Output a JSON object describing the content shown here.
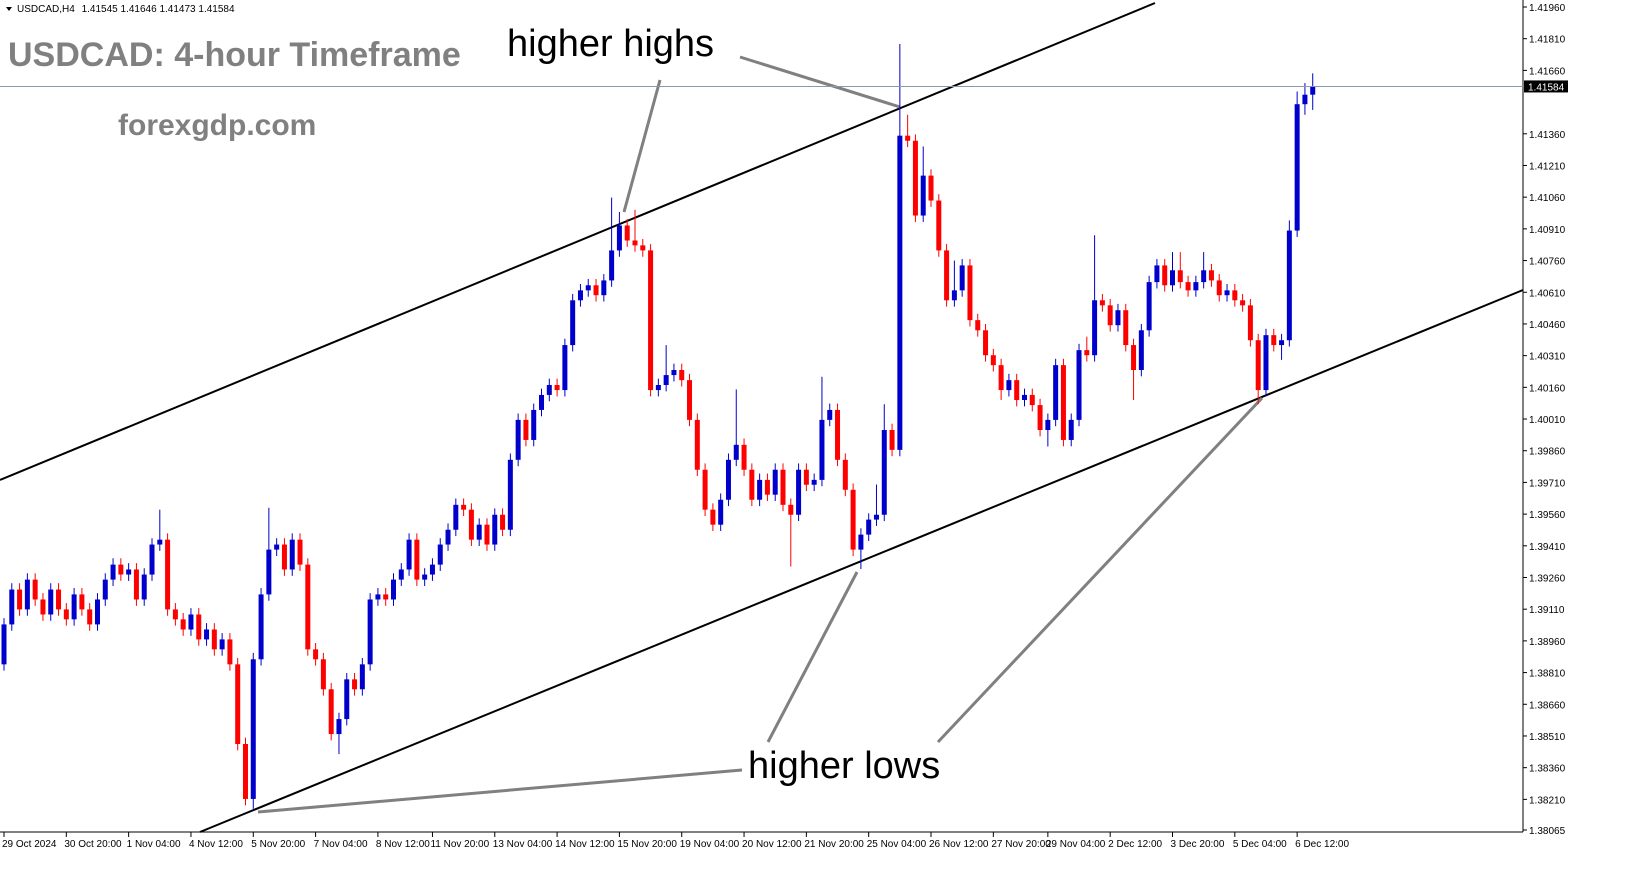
{
  "chart_data": {
    "type": "candlestick",
    "symbol": "USDCAD,H4",
    "title": "USDCAD: 4-hour Timeframe",
    "subtitle": "forexgdp.com",
    "annotations": [
      "higher highs",
      "higher lows"
    ],
    "up_color": "#0000cc",
    "down_color": "#ff0000",
    "categories": [
      "29 Oct 2024",
      null,
      null,
      null,
      null,
      null,
      null,
      null,
      "30 Oct 20:00",
      null,
      null,
      null,
      null,
      null,
      null,
      null,
      "1 Nov 04:00",
      null,
      null,
      null,
      null,
      null,
      null,
      null,
      "4 Nov 12:00",
      null,
      null,
      null,
      null,
      null,
      null,
      null,
      "5 Nov 20:00",
      null,
      null,
      null,
      null,
      null,
      null,
      null,
      "7 Nov 04:00",
      null,
      null,
      null,
      null,
      null,
      null,
      null,
      "8 Nov 12:00",
      null,
      null,
      null,
      null,
      null,
      null,
      "11 Nov 20:00",
      null,
      null,
      null,
      null,
      null,
      null,
      null,
      "13 Nov 04:00",
      null,
      null,
      null,
      null,
      null,
      null,
      null,
      "14 Nov 12:00",
      null,
      null,
      null,
      null,
      null,
      null,
      null,
      "15 Nov 20:00",
      null,
      null,
      null,
      null,
      null,
      null,
      null,
      "19 Nov 04:00",
      null,
      null,
      null,
      null,
      null,
      null,
      null,
      "20 Nov 12:00",
      null,
      null,
      null,
      null,
      null,
      null,
      null,
      "21 Nov 20:00",
      null,
      null,
      null,
      null,
      null,
      null,
      null,
      "25 Nov 04:00",
      null,
      null,
      null,
      null,
      null,
      null,
      null,
      "26 Nov 12:00",
      null,
      null,
      null,
      null,
      null,
      null,
      null,
      "27 Nov 20:00",
      null,
      null,
      null,
      null,
      null,
      null,
      "29 Nov 04:00",
      null,
      null,
      null,
      null,
      null,
      null,
      null,
      "2 Dec 12:00",
      null,
      null,
      null,
      null,
      null,
      null,
      null,
      "3 Dec 20:00",
      null,
      null,
      null,
      null,
      null,
      null,
      null,
      "5 Dec 04:00",
      null,
      null,
      null,
      null,
      null,
      null,
      null,
      "6 Dec 12:00",
      null,
      null
    ],
    "open": [
      1.38849,
      1.39038,
      1.39203,
      1.39109,
      1.3925,
      1.39156,
      1.39085,
      1.39203,
      1.39109,
      1.39062,
      1.3918,
      1.39109,
      1.39038,
      1.39156,
      1.3925,
      1.39321,
      1.39274,
      1.39298,
      1.39156,
      1.39274,
      1.39416,
      1.39439,
      1.39109,
      1.39062,
      1.39014,
      1.39085,
      1.38967,
      1.39014,
      1.3892,
      1.38967,
      1.38849,
      1.38472,
      1.38212,
      1.38873,
      1.3918,
      1.39392,
      1.39416,
      1.39298,
      1.39439,
      1.39321,
      1.3892,
      1.38873,
      1.38731,
      1.38519,
      1.3859,
      1.38778,
      1.38731,
      1.38849,
      1.39156,
      1.3918,
      1.39156,
      1.3925,
      1.39298,
      1.39439,
      1.3925,
      1.39274,
      1.39321,
      1.39416,
      1.39486,
      1.39604,
      1.39581,
      1.39439,
      1.3951,
      1.39416,
      1.39557,
      1.39486,
      1.39817,
      1.40006,
      1.39911,
      1.40053,
      1.40124,
      1.40171,
      1.40147,
      1.4036,
      1.40572,
      1.40619,
      1.40643,
      1.40596,
      1.40666,
      1.40808,
      1.40926,
      1.40855,
      1.40832,
      1.40808,
      1.40147,
      1.40171,
      1.40218,
      1.40242,
      1.40194,
      1.40006,
      1.3977,
      1.39581,
      1.3951,
      1.39628,
      1.39817,
      1.39888,
      1.3977,
      1.39628,
      1.39722,
      1.39652,
      1.3977,
      1.39604,
      1.39557,
      1.3977,
      1.39699,
      1.39722,
      1.40006,
      1.40053,
      1.39817,
      1.39675,
      1.39392,
      1.39463,
      1.39534,
      1.39557,
      1.39958,
      1.39864,
      1.41351,
      1.41327,
      1.40973,
      1.41162,
      1.41044,
      1.40808,
      1.40572,
      1.40619,
      1.40737,
      1.40478,
      1.4043,
      1.40312,
      1.40265,
      1.40147,
      1.40194,
      1.401,
      1.40124,
      1.40076,
      1.39958,
      1.40006,
      1.40265,
      1.39911,
      1.40006,
      1.40336,
      1.40312,
      1.40572,
      1.40548,
      1.40454,
      1.40525,
      1.4036,
      1.40242,
      1.4043,
      1.40658,
      1.40737,
      1.40643,
      1.40714,
      1.40658,
      1.40619,
      1.40658,
      1.40714,
      1.40666,
      1.40596,
      1.40619,
      1.40572,
      1.40548,
      1.40383,
      1.40147,
      1.40407,
      1.4036,
      1.40383,
      1.40902,
      1.415,
      1.41545
    ],
    "high": [
      1.39068,
      1.39233,
      1.39233,
      1.3928,
      1.3928,
      1.39186,
      1.39233,
      1.39233,
      1.39139,
      1.3921,
      1.3921,
      1.39139,
      1.39186,
      1.3928,
      1.39351,
      1.39351,
      1.39328,
      1.39328,
      1.39304,
      1.39446,
      1.39581,
      1.39469,
      1.39139,
      1.39092,
      1.39115,
      1.39115,
      1.39044,
      1.39044,
      1.38997,
      1.38997,
      1.38879,
      1.38502,
      1.38903,
      1.3921,
      1.3959,
      1.39446,
      1.39446,
      1.39469,
      1.39469,
      1.39351,
      1.3895,
      1.38903,
      1.38761,
      1.3862,
      1.38808,
      1.38808,
      1.38879,
      1.39186,
      1.3921,
      1.3921,
      1.3928,
      1.39328,
      1.39469,
      1.39469,
      1.39304,
      1.39351,
      1.39446,
      1.39516,
      1.39634,
      1.39634,
      1.39611,
      1.3954,
      1.3954,
      1.39587,
      1.39587,
      1.39847,
      1.40036,
      1.40036,
      1.40083,
      1.40154,
      1.40201,
      1.40201,
      1.4039,
      1.40602,
      1.40649,
      1.40673,
      1.40673,
      1.40696,
      1.41058,
      1.4099,
      1.40956,
      1.41,
      1.40862,
      1.40838,
      1.40201,
      1.4036,
      1.40272,
      1.40272,
      1.40224,
      1.40036,
      1.398,
      1.39611,
      1.39658,
      1.39847,
      1.4015,
      1.39918,
      1.398,
      1.39752,
      1.39752,
      1.398,
      1.398,
      1.39634,
      1.398,
      1.398,
      1.39752,
      1.4021,
      1.40083,
      1.40083,
      1.39847,
      1.39705,
      1.39493,
      1.39564,
      1.397,
      1.4008,
      1.39988,
      1.41785,
      1.4145,
      1.41357,
      1.413,
      1.41192,
      1.41074,
      1.40838,
      1.4076,
      1.40767,
      1.40767,
      1.40508,
      1.4046,
      1.40342,
      1.40295,
      1.40224,
      1.40224,
      1.40154,
      1.40154,
      1.40106,
      1.40036,
      1.40295,
      1.40295,
      1.40036,
      1.40366,
      1.404,
      1.4088,
      1.40602,
      1.40578,
      1.40555,
      1.40555,
      1.4039,
      1.4046,
      1.40688,
      1.40767,
      1.40767,
      1.408,
      1.408,
      1.40688,
      1.40688,
      1.408,
      1.40744,
      1.40696,
      1.40649,
      1.40649,
      1.40602,
      1.40578,
      1.40413,
      1.40437,
      1.40437,
      1.40413,
      1.4095,
      1.4156,
      1.416,
      1.41646
    ],
    "low": [
      1.38819,
      1.39008,
      1.39079,
      1.39079,
      1.39126,
      1.39055,
      1.39055,
      1.39079,
      1.39032,
      1.39032,
      1.39079,
      1.39008,
      1.39008,
      1.39126,
      1.3922,
      1.39244,
      1.39244,
      1.39126,
      1.39126,
      1.39244,
      1.39386,
      1.39079,
      1.39032,
      1.38984,
      1.38984,
      1.38937,
      1.38937,
      1.3889,
      1.3889,
      1.38819,
      1.38442,
      1.38182,
      1.38165,
      1.38843,
      1.3915,
      1.39362,
      1.39268,
      1.39268,
      1.39291,
      1.3889,
      1.38843,
      1.38701,
      1.38489,
      1.38424,
      1.3856,
      1.38701,
      1.38701,
      1.38819,
      1.39126,
      1.39126,
      1.39126,
      1.3922,
      1.39268,
      1.3922,
      1.3922,
      1.39244,
      1.39291,
      1.39386,
      1.39456,
      1.39551,
      1.39409,
      1.39409,
      1.39386,
      1.39386,
      1.39456,
      1.39456,
      1.39787,
      1.39881,
      1.39881,
      1.40023,
      1.40094,
      1.40117,
      1.40117,
      1.4033,
      1.40542,
      1.40589,
      1.40566,
      1.40566,
      1.40636,
      1.40778,
      1.40825,
      1.40802,
      1.40778,
      1.40117,
      1.40117,
      1.40141,
      1.40188,
      1.40164,
      1.39976,
      1.3974,
      1.39551,
      1.3948,
      1.3948,
      1.39598,
      1.39787,
      1.3974,
      1.39598,
      1.39598,
      1.39622,
      1.39622,
      1.39574,
      1.39312,
      1.39527,
      1.39669,
      1.39669,
      1.39692,
      1.39976,
      1.39787,
      1.39645,
      1.39362,
      1.393,
      1.39433,
      1.39504,
      1.39527,
      1.39834,
      1.39834,
      1.41297,
      1.40943,
      1.40943,
      1.41014,
      1.40778,
      1.40542,
      1.40542,
      1.40589,
      1.40448,
      1.404,
      1.40282,
      1.40235,
      1.401,
      1.40117,
      1.4007,
      1.4007,
      1.40046,
      1.39928,
      1.3988,
      1.39976,
      1.39881,
      1.39881,
      1.39976,
      1.40282,
      1.40282,
      1.40518,
      1.40424,
      1.40424,
      1.4033,
      1.401,
      1.40212,
      1.404,
      1.40628,
      1.40613,
      1.40613,
      1.40628,
      1.40589,
      1.40589,
      1.40628,
      1.40636,
      1.40566,
      1.40566,
      1.40542,
      1.40518,
      1.40353,
      1.4008,
      1.40117,
      1.4033,
      1.4029,
      1.40353,
      1.40872,
      1.4145,
      1.41473
    ],
    "close": [
      1.39038,
      1.39203,
      1.39109,
      1.3925,
      1.39156,
      1.39085,
      1.39203,
      1.39109,
      1.39062,
      1.3918,
      1.39109,
      1.39038,
      1.39156,
      1.3925,
      1.39321,
      1.39274,
      1.39298,
      1.39156,
      1.39274,
      1.39416,
      1.39439,
      1.39109,
      1.39062,
      1.39014,
      1.39085,
      1.38967,
      1.39014,
      1.3892,
      1.38967,
      1.38849,
      1.38472,
      1.38212,
      1.38873,
      1.3918,
      1.39392,
      1.39416,
      1.39298,
      1.39439,
      1.39321,
      1.3892,
      1.38873,
      1.38731,
      1.38519,
      1.3859,
      1.38778,
      1.38731,
      1.38849,
      1.39156,
      1.3918,
      1.39156,
      1.3925,
      1.39298,
      1.39439,
      1.3925,
      1.39274,
      1.39321,
      1.39416,
      1.39486,
      1.39604,
      1.39581,
      1.39439,
      1.3951,
      1.39416,
      1.39557,
      1.39486,
      1.39817,
      1.40006,
      1.39911,
      1.40053,
      1.40124,
      1.40171,
      1.40147,
      1.4036,
      1.40572,
      1.40619,
      1.40643,
      1.40596,
      1.40666,
      1.40808,
      1.40926,
      1.40855,
      1.40832,
      1.40808,
      1.40147,
      1.40171,
      1.40218,
      1.40242,
      1.40194,
      1.40006,
      1.3977,
      1.39581,
      1.3951,
      1.39628,
      1.39817,
      1.39888,
      1.3977,
      1.39628,
      1.39722,
      1.39652,
      1.3977,
      1.39604,
      1.39557,
      1.3977,
      1.39699,
      1.39722,
      1.40006,
      1.40053,
      1.39817,
      1.39675,
      1.39392,
      1.39463,
      1.39534,
      1.39557,
      1.39958,
      1.39864,
      1.41351,
      1.41327,
      1.40973,
      1.41162,
      1.41044,
      1.40808,
      1.40572,
      1.40619,
      1.40737,
      1.40478,
      1.4043,
      1.40312,
      1.40265,
      1.40147,
      1.40194,
      1.401,
      1.40124,
      1.40076,
      1.39958,
      1.40006,
      1.40265,
      1.39911,
      1.40006,
      1.40336,
      1.40312,
      1.40572,
      1.40548,
      1.40454,
      1.40525,
      1.4036,
      1.40242,
      1.4043,
      1.40658,
      1.40737,
      1.40643,
      1.40714,
      1.40658,
      1.40619,
      1.40658,
      1.40714,
      1.40666,
      1.40596,
      1.40619,
      1.40572,
      1.40548,
      1.40383,
      1.40147,
      1.40407,
      1.4036,
      1.40383,
      1.40902,
      1.415,
      1.41545,
      1.41584
    ],
    "ylim": [
      1.38065,
      1.4196
    ],
    "yticks": [
      {
        "value": 1.4196,
        "label": "1.41960"
      },
      {
        "value": 1.4181,
        "label": "1.41810"
      },
      {
        "value": 1.4166,
        "label": "1.41660"
      },
      {
        "value": 1.4136,
        "label": "1.41360"
      },
      {
        "value": 1.4121,
        "label": "1.41210"
      },
      {
        "value": 1.4106,
        "label": "1.41060"
      },
      {
        "value": 1.4091,
        "label": "1.40910"
      },
      {
        "value": 1.4076,
        "label": "1.40760"
      },
      {
        "value": 1.4061,
        "label": "1.40610"
      },
      {
        "value": 1.4046,
        "label": "1.40460"
      },
      {
        "value": 1.4031,
        "label": "1.40310"
      },
      {
        "value": 1.4016,
        "label": "1.40160"
      },
      {
        "value": 1.4001,
        "label": "1.40010"
      },
      {
        "value": 1.3986,
        "label": "1.39860"
      },
      {
        "value": 1.3971,
        "label": "1.39710"
      },
      {
        "value": 1.3956,
        "label": "1.39560"
      },
      {
        "value": 1.3941,
        "label": "1.39410"
      },
      {
        "value": 1.3926,
        "label": "1.39260"
      },
      {
        "value": 1.3911,
        "label": "1.39110"
      },
      {
        "value": 1.3896,
        "label": "1.38960"
      },
      {
        "value": 1.3881,
        "label": "1.38810"
      },
      {
        "value": 1.3866,
        "label": "1.38660"
      },
      {
        "value": 1.3851,
        "label": "1.38510"
      },
      {
        "value": 1.3836,
        "label": "1.38360"
      },
      {
        "value": 1.3821,
        "label": "1.38210"
      },
      1.38065
    ]
  }
}
